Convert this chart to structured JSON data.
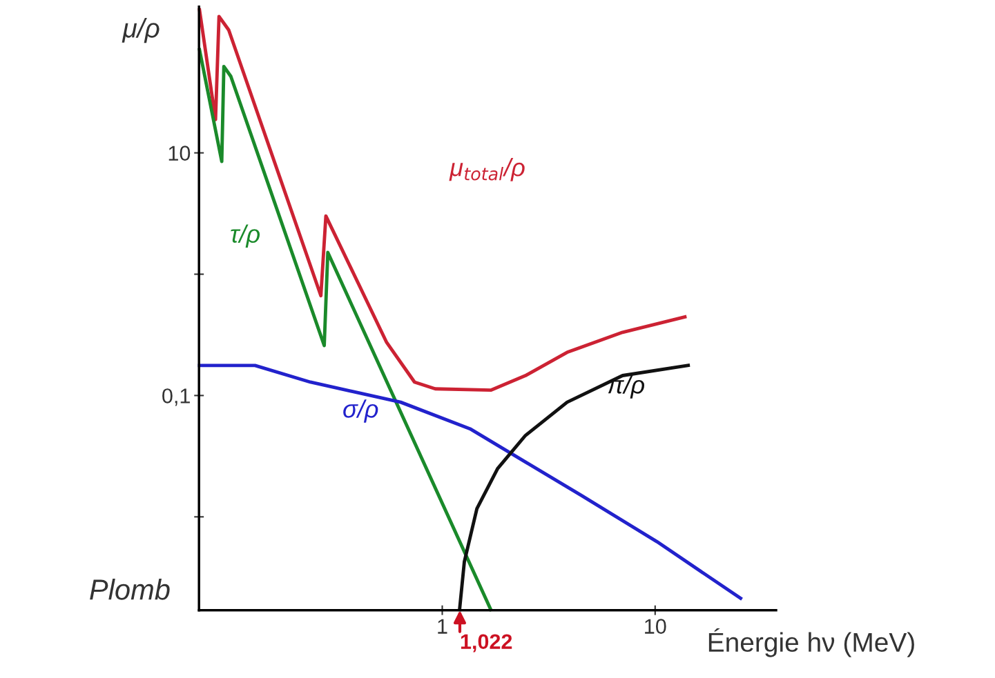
{
  "chart_data": {
    "type": "line",
    "ylabel": "μ/ρ",
    "xlabel": "Énergie hν (MeV)",
    "log": "xy",
    "xlim": [
      0.072,
      37
    ],
    "ylim": [
      0.0017,
      160
    ],
    "xticks": [
      1,
      10
    ],
    "yticks": [
      {
        "value": 0.01,
        "label": null
      },
      {
        "value": 0.1,
        "label": "0,1"
      },
      {
        "value": 1,
        "label": null
      },
      {
        "value": 10,
        "label": "10"
      }
    ],
    "grid": false,
    "legend": false,
    "marker": "none",
    "line_style": "solid",
    "annotations": [
      "Plomb",
      "1,022"
    ],
    "series": [
      {
        "name": "μ$_{total}$/ρ",
        "color": "#cc2233",
        "x": [
          0.0724,
          0.0861,
          0.0894,
          0.0993,
          0.269,
          0.284,
          0.548,
          0.741,
          0.927,
          1.69,
          2.46,
          3.86,
          7.03,
          13.8
        ],
        "values": [
          151,
          18.8,
          133,
          103,
          0.664,
          3.02,
          0.274,
          0.129,
          0.1135,
          0.1107,
          0.146,
          0.227,
          0.332,
          0.444
        ]
      },
      {
        "name": "τ/ρ",
        "color": "#1a8a2a",
        "x": [
          0.0724,
          0.0921,
          0.0942,
          0.1016,
          0.279,
          0.29,
          1.69
        ],
        "values": [
          70.7,
          8.49,
          51.5,
          42.7,
          0.258,
          1.51,
          0.00172
        ]
      },
      {
        "name": "σ/ρ",
        "color": "#2222cc",
        "x": [
          0.0724,
          0.132,
          0.24,
          0.638,
          1.35,
          2.46,
          4.48,
          10.2,
          25.2
        ],
        "values": [
          0.177,
          0.177,
          0.129,
          0.0881,
          0.0532,
          0.0283,
          0.0151,
          0.00624,
          0.00213
        ]
      },
      {
        "name": "π/ρ",
        "color": "#111111",
        "x": [
          1.206,
          1.27,
          1.455,
          1.82,
          2.46,
          3.86,
          7.03,
          14.3
        ],
        "values": [
          0.00172,
          0.00427,
          0.0117,
          0.025,
          0.0469,
          0.0881,
          0.146,
          0.177
        ]
      }
    ]
  }
}
